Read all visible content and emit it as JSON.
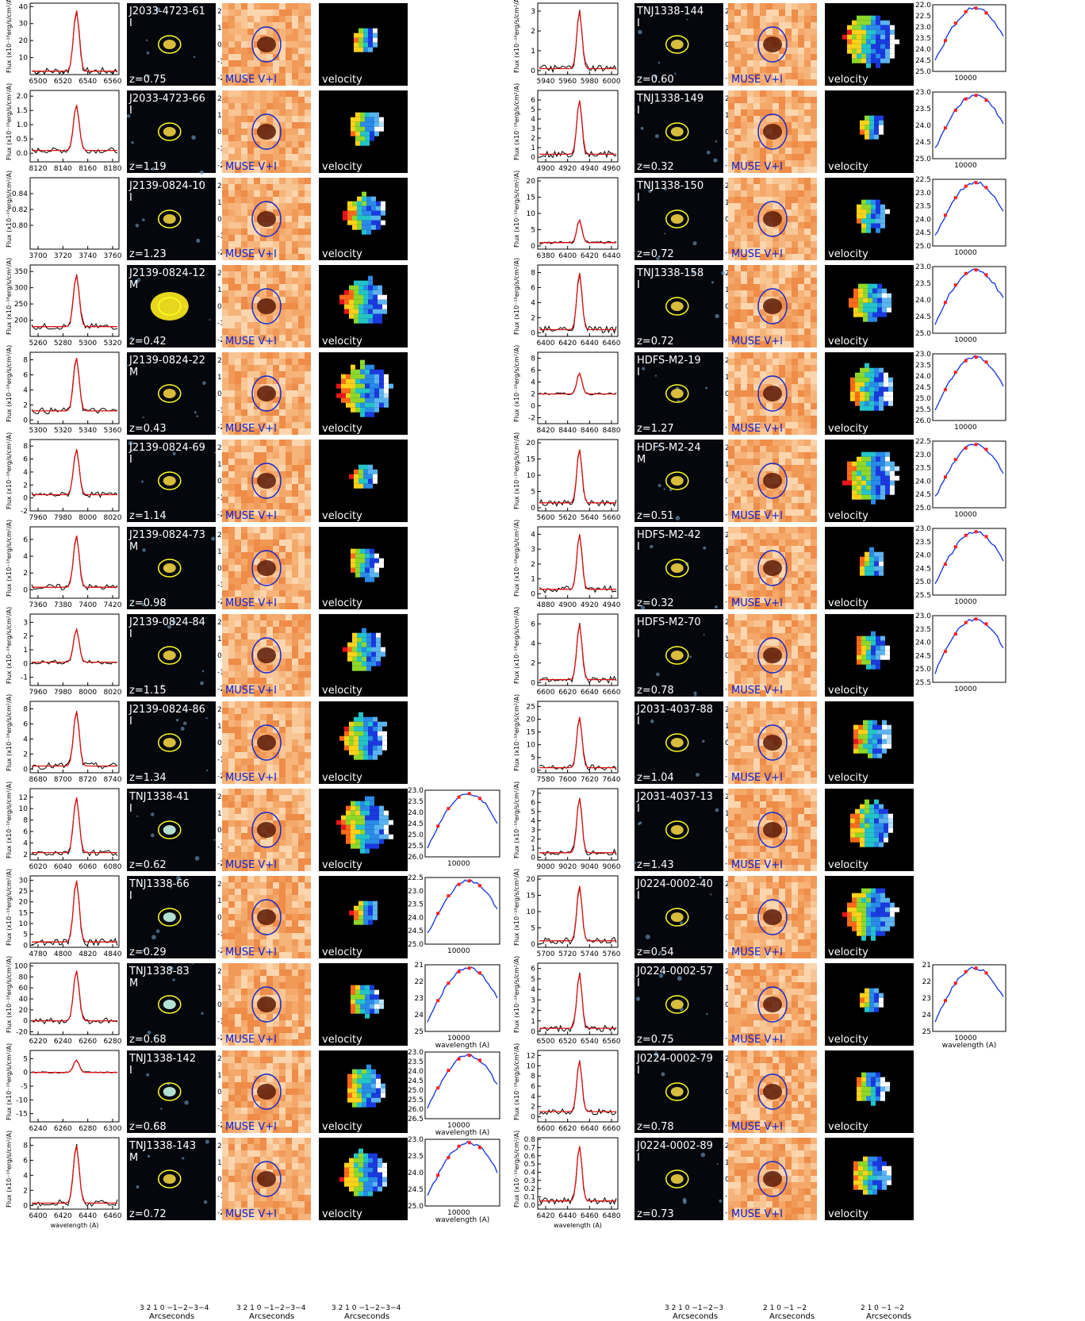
{
  "common": {
    "flux_label": "Flux (x10⁻¹⁸erg/s/cm²/A)",
    "muse_label": "MUSE V+I",
    "velocity_label": "velocity",
    "wavelength_label": "wavelength (A)",
    "arcsec_label": "Arcseconds",
    "arcsec_ticks_4": "3 2 1 0 −1−2−3−4",
    "arcsec_ticks_3": "3 2 1 0 −1−2−3",
    "arcsec_ticks_2": "2 1 0 −1 −2",
    "colors": {
      "spectrum_model": "#dd1111",
      "sed_model": "#1030e0",
      "ellipse_hst": "#ffff20",
      "ellipse_muse": "#1828d0",
      "points": "#ff2020"
    }
  },
  "chart_data": [
    {
      "id": "J2033-4723-61",
      "type": "line",
      "flag": "I",
      "z": "z=0.75",
      "xticks": [
        "6500",
        "6520",
        "6540",
        "6560"
      ],
      "yticks": [
        "10",
        "20",
        "30",
        "40"
      ],
      "ylim": [
        0,
        42
      ],
      "peak": 38,
      "base": 2,
      "vel": "2",
      "sed": null
    },
    {
      "id": "J2033-4723-66",
      "type": "line",
      "flag": "I",
      "z": "z=1.19",
      "xticks": [
        "8120",
        "8140",
        "8160",
        "8180"
      ],
      "yticks": [
        "0.0",
        "0.5",
        "1.0",
        "1.5",
        "2.0"
      ],
      "ylim": [
        -0.3,
        2.2
      ],
      "peak": 1.7,
      "base": 0.1,
      "vel": "2",
      "sed": null
    },
    {
      "id": "J2139-0824-10",
      "type": "line",
      "flag": "I",
      "z": "z=1.23",
      "xticks": [
        "3700",
        "3720",
        "3740",
        "3760"
      ],
      "yticks": [
        "0.80",
        "0.82",
        "0.84"
      ],
      "ylim": [
        0.77,
        0.86
      ],
      "peak": null,
      "base": null,
      "vel": "2",
      "sed": null
    },
    {
      "id": "J2139-0824-12",
      "type": "line",
      "flag": "M",
      "z": "z=0.42",
      "xticks": [
        "5260",
        "5280",
        "5300",
        "5320"
      ],
      "yticks": [
        "200",
        "250",
        "300",
        "350"
      ],
      "ylim": [
        150,
        370
      ],
      "peak": 340,
      "base": 180,
      "vel": "3",
      "sed": null
    },
    {
      "id": "J2139-0824-22",
      "type": "line",
      "flag": "M",
      "z": "z=0.43",
      "xticks": [
        "5300",
        "5320",
        "5340",
        "5360"
      ],
      "yticks": [
        "0",
        "2",
        "4",
        "6",
        "8"
      ],
      "ylim": [
        -0.5,
        9
      ],
      "peak": 8.3,
      "base": 1.2,
      "vel": "3",
      "sed": null
    },
    {
      "id": "J2139-0824-69",
      "type": "line",
      "flag": "I",
      "z": "z=1.14",
      "xticks": [
        "7960",
        "7980",
        "8000",
        "8020"
      ],
      "yticks": [
        "-2",
        "0",
        "2",
        "4",
        "6",
        "8"
      ],
      "ylim": [
        -2,
        9
      ],
      "peak": 7.5,
      "base": 0.5,
      "vel": "3",
      "sed": null
    },
    {
      "id": "J2139-0824-73",
      "type": "line",
      "flag": "M",
      "z": "z=0.98",
      "xticks": [
        "7360",
        "7380",
        "7400",
        "7420"
      ],
      "yticks": [
        "0",
        "2",
        "4",
        "6"
      ],
      "ylim": [
        -1,
        7.5
      ],
      "peak": 6.5,
      "base": 0.3,
      "vel": "2",
      "sed": null
    },
    {
      "id": "J2139-0824-84",
      "type": "line",
      "flag": "I",
      "z": "z=1.15",
      "xticks": [
        "7960",
        "7980",
        "8000",
        "8020"
      ],
      "yticks": [
        "-1",
        "0",
        "1",
        "2",
        "3"
      ],
      "ylim": [
        -1.6,
        3.6
      ],
      "peak": 2.5,
      "base": 0.1,
      "vel": "2",
      "sed": null
    },
    {
      "id": "J2139-0824-86",
      "type": "line",
      "flag": "I",
      "z": "z=1.34",
      "xticks": [
        "8680",
        "8700",
        "8720",
        "8740"
      ],
      "yticks": [
        "0",
        "2",
        "4",
        "6",
        "8"
      ],
      "ylim": [
        -0.5,
        9
      ],
      "peak": 7.7,
      "base": 0.4,
      "vel": "2",
      "sed": null
    },
    {
      "id": "TNJ1338-41",
      "type": "line",
      "flag": "I",
      "z": "z=0.62",
      "xticks": [
        "6020",
        "6040",
        "6060",
        "6080"
      ],
      "yticks": [
        "2",
        "4",
        "6",
        "8",
        "10",
        "12"
      ],
      "ylim": [
        1,
        13.5
      ],
      "peak": 12,
      "base": 2.3,
      "vel": "2",
      "sed": {
        "yticks": [
          "23.0",
          "23.5",
          "24.0",
          "24.5",
          "25.0",
          "25.5",
          "26.0"
        ],
        "ymin": 23.0,
        "ymax": 26.0,
        "xtick": "10000",
        "xlabel": ""
      }
    },
    {
      "id": "TNJ1338-66",
      "type": "line",
      "flag": "I",
      "z": "z=0.29",
      "xticks": [
        "4780",
        "4800",
        "4820",
        "4840"
      ],
      "yticks": [
        "0",
        "5",
        "10",
        "15",
        "20",
        "25",
        "30"
      ],
      "ylim": [
        -1,
        32
      ],
      "peak": 30,
      "base": 1.5,
      "vel": "2",
      "sed": {
        "yticks": [
          "22.5",
          "23.0",
          "23.5",
          "24.0",
          "24.5",
          "25.0"
        ],
        "ymin": 22.5,
        "ymax": 25.0,
        "xtick": "10000",
        "xlabel": ""
      }
    },
    {
      "id": "TNJ1338-83",
      "type": "line",
      "flag": "M",
      "z": "z=0.68",
      "xticks": [
        "6220",
        "6240",
        "6260",
        "6280"
      ],
      "yticks": [
        "-20",
        "0",
        "20",
        "40",
        "60",
        "80",
        "100"
      ],
      "ylim": [
        -25,
        105
      ],
      "peak": 92,
      "base": 0,
      "vel": "3",
      "sed": {
        "yticks": [
          "21",
          "22",
          "23",
          "24",
          "25"
        ],
        "ymin": 21,
        "ymax": 25,
        "xtick": "10000",
        "xlabel": "wavelength (A)"
      }
    },
    {
      "id": "TNJ1338-142",
      "type": "line",
      "flag": "I",
      "z": "z=0.68",
      "xticks": [
        "6240",
        "6260",
        "6280",
        "6300"
      ],
      "yticks": [
        "-15",
        "-10",
        "-5",
        "0",
        "5"
      ],
      "ylim": [
        -18,
        8
      ],
      "peak": 4.5,
      "base": 0,
      "vel": "2",
      "sed": {
        "yticks": [
          "23.0",
          "23.5",
          "24.0",
          "24.5",
          "25.0",
          "25.5",
          "26.0",
          "26.5"
        ],
        "ymin": 23.0,
        "ymax": 26.5,
        "xtick": "10000",
        "xlabel": "wavelength (A)"
      }
    },
    {
      "id": "TNJ1338-143",
      "type": "line",
      "flag": "M",
      "z": "z=0.72",
      "xticks": [
        "6400",
        "6420",
        "6440",
        "6460"
      ],
      "yticks": [
        "0",
        "2",
        "4",
        "6",
        "8"
      ],
      "ylim": [
        -0.5,
        9
      ],
      "peak": 8,
      "base": 0.3,
      "vel": "3",
      "sed": {
        "yticks": [
          "23.0",
          "23.5",
          "24.0",
          "24.5",
          "25.0"
        ],
        "ymin": 23.0,
        "ymax": 25.0,
        "xtick": "10000",
        "xlabel": "wavelength (A)"
      },
      "xlabel": "wavelength (A)"
    },
    {
      "id": "TNJ1338-144",
      "type": "line",
      "flag": "I",
      "z": "z=0.60",
      "xticks": [
        "5940",
        "5960",
        "5980",
        "6000"
      ],
      "yticks": [
        "0",
        "1",
        "2",
        "3"
      ],
      "ylim": [
        -0.2,
        3.4
      ],
      "peak": 3,
      "base": 0.1,
      "vel": "2",
      "sed": {
        "yticks": [
          "22.0",
          "22.5",
          "23.0",
          "23.5",
          "24.0",
          "24.5",
          "25.0"
        ],
        "ymin": 22.0,
        "ymax": 25.0,
        "xtick": "10000",
        "xlabel": ""
      }
    },
    {
      "id": "TNJ1338-149",
      "type": "line",
      "flag": "I",
      "z": "z=0.32",
      "xticks": [
        "4900",
        "4920",
        "4940",
        "4960"
      ],
      "yticks": [
        "0",
        "1",
        "2",
        "3",
        "4",
        "5",
        "6"
      ],
      "ylim": [
        -0.5,
        7
      ],
      "peak": 6,
      "base": 0.3,
      "vel": "2",
      "sed": {
        "yticks": [
          "23.0",
          "23.5",
          "24.0",
          "24.5",
          "25.0"
        ],
        "ymin": 23.0,
        "ymax": 25.0,
        "xtick": "10000",
        "xlabel": ""
      }
    },
    {
      "id": "TNJ1338-150",
      "type": "line",
      "flag": "I",
      "z": "z=0.72",
      "xticks": [
        "6380",
        "6400",
        "6420",
        "6440"
      ],
      "yticks": [
        "0",
        "5",
        "10",
        "15",
        "20"
      ],
      "ylim": [
        -1,
        21
      ],
      "peak": 8,
      "base": 1,
      "vel": "2",
      "sed": {
        "yticks": [
          "22.5",
          "23.0",
          "23.5",
          "24.0",
          "24.5",
          "25.0"
        ],
        "ymin": 22.5,
        "ymax": 25.0,
        "xtick": "10000",
        "xlabel": ""
      }
    },
    {
      "id": "TNJ1338-158",
      "type": "line",
      "flag": "I",
      "z": "z=0.72",
      "xticks": [
        "6400",
        "6420",
        "6440",
        "6460"
      ],
      "yticks": [
        "0",
        "2",
        "4",
        "6",
        "8"
      ],
      "ylim": [
        -0.5,
        9
      ],
      "peak": 8,
      "base": 0.4,
      "vel": "2",
      "sed": {
        "yticks": [
          "23.0",
          "23.5",
          "24.0",
          "24.5",
          "25.0"
        ],
        "ymin": 23.0,
        "ymax": 25.0,
        "xtick": "10000",
        "xlabel": ""
      }
    },
    {
      "id": "HDFS-M2-19",
      "type": "line",
      "flag": "I",
      "z": "z=1.27",
      "xticks": [
        "8420",
        "8440",
        "8460",
        "8480"
      ],
      "yticks": [
        "-2",
        "0",
        "2",
        "4",
        "6",
        "8"
      ],
      "ylim": [
        -3,
        9
      ],
      "peak": 5.5,
      "base": 2,
      "vel": "2",
      "sed": {
        "yticks": [
          "23.0",
          "23.5",
          "24.0",
          "24.5",
          "25.0",
          "25.5",
          "26.0"
        ],
        "ymin": 23.0,
        "ymax": 26.0,
        "xtick": "10000",
        "xlabel": ""
      }
    },
    {
      "id": "HDFS-M2-24",
      "type": "line",
      "flag": "M",
      "z": "z=0.51",
      "xticks": [
        "5600",
        "5620",
        "5640",
        "5660"
      ],
      "yticks": [
        "0",
        "5",
        "10",
        "15",
        "20"
      ],
      "ylim": [
        -1,
        21
      ],
      "peak": 18,
      "base": 1.5,
      "vel": "2",
      "sed": {
        "yticks": [
          "22.5",
          "23.0",
          "23.5",
          "24.0",
          "24.5",
          "25.0"
        ],
        "ymin": 22.5,
        "ymax": 25.0,
        "xtick": "10000",
        "xlabel": ""
      }
    },
    {
      "id": "HDFS-M2-42",
      "type": "line",
      "flag": "I",
      "z": "z=0.32",
      "xticks": [
        "4880",
        "4900",
        "4920",
        "4940"
      ],
      "yticks": [
        "0",
        "1",
        "2",
        "3",
        "4"
      ],
      "ylim": [
        -0.3,
        4.5
      ],
      "peak": 4,
      "base": 0.3,
      "vel": "2",
      "sed": {
        "yticks": [
          "23.0",
          "23.5",
          "24.0",
          "24.5",
          "25.0",
          "25.5"
        ],
        "ymin": 23.0,
        "ymax": 25.5,
        "xtick": "10000",
        "xlabel": ""
      }
    },
    {
      "id": "HDFS-M2-70",
      "type": "line",
      "flag": "I",
      "z": "z=0.78",
      "xticks": [
        "6600",
        "6620",
        "6640",
        "6660"
      ],
      "yticks": [
        "0",
        "2",
        "4",
        "6"
      ],
      "ylim": [
        -0.3,
        7
      ],
      "peak": 6,
      "base": 0.3,
      "vel": "2",
      "sed": {
        "yticks": [
          "23.0",
          "23.5",
          "24.0",
          "24.5",
          "25.0",
          "25.5"
        ],
        "ymin": 23.0,
        "ymax": 25.5,
        "xtick": "10000",
        "xlabel": ""
      }
    },
    {
      "id": "J2031-4037-88",
      "type": "line",
      "flag": "I",
      "z": "z=1.04",
      "xticks": [
        "7580",
        "7600",
        "7620",
        "7640"
      ],
      "yticks": [
        "0",
        "5",
        "10",
        "15",
        "20",
        "25"
      ],
      "ylim": [
        -1,
        27
      ],
      "peak": 21,
      "base": 1,
      "vel": "2",
      "sed": null
    },
    {
      "id": "J2031-4037-13",
      "type": "line",
      "flag": "I",
      "z": "z=1.43",
      "xticks": [
        "9000",
        "9020",
        "9040",
        "9060"
      ],
      "yticks": [
        "0",
        "1",
        "2",
        "3",
        "4",
        "5",
        "6",
        "7"
      ],
      "ylim": [
        -0.3,
        7.5
      ],
      "peak": 6.5,
      "base": 0.5,
      "vel": "2",
      "sed": null
    },
    {
      "id": "J0224-0002-40",
      "type": "line",
      "flag": "I",
      "z": "z=0.54",
      "xticks": [
        "5700",
        "5720",
        "5740",
        "5760"
      ],
      "yticks": [
        "0",
        "5",
        "10",
        "15",
        "20"
      ],
      "ylim": [
        -1,
        21
      ],
      "peak": 18,
      "base": 1,
      "vel": "3",
      "sed": null
    },
    {
      "id": "J0224-0002-57",
      "type": "line",
      "flag": "I",
      "z": "z=0.75",
      "xticks": [
        "6500",
        "6520",
        "6540",
        "6560"
      ],
      "yticks": [
        "0",
        "1",
        "2",
        "3",
        "4",
        "5",
        "6"
      ],
      "ylim": [
        -0.3,
        6.5
      ],
      "peak": 5.5,
      "base": 0.3,
      "vel": "2",
      "sed": {
        "yticks": [
          "21",
          "22",
          "23",
          "24",
          "25"
        ],
        "ymin": 21,
        "ymax": 25,
        "xtick": "10000",
        "xlabel": "wavelength (A)"
      }
    },
    {
      "id": "J0224-0002-79",
      "type": "line",
      "flag": "I",
      "z": "z=0.78",
      "xticks": [
        "6600",
        "6620",
        "6640",
        "6660"
      ],
      "yticks": [
        "0",
        "2",
        "4",
        "6",
        "8",
        "10",
        "12"
      ],
      "ylim": [
        -1,
        13
      ],
      "peak": 11,
      "base": 1,
      "vel": "2",
      "sed": null
    },
    {
      "id": "J0224-0002-89",
      "type": "line",
      "flag": "I",
      "z": "z=0.73",
      "xticks": [
        "6420",
        "6440",
        "6460",
        "6480"
      ],
      "yticks": [
        "0.0",
        "0.1",
        "0.2",
        "0.3",
        "0.4",
        "0.5",
        "0.6",
        "0.7",
        "0.8"
      ],
      "ylim": [
        -0.05,
        0.82
      ],
      "peak": 0.72,
      "base": 0.05,
      "vel": "2",
      "sed": null,
      "xlabel": "wavelength (A)"
    }
  ]
}
